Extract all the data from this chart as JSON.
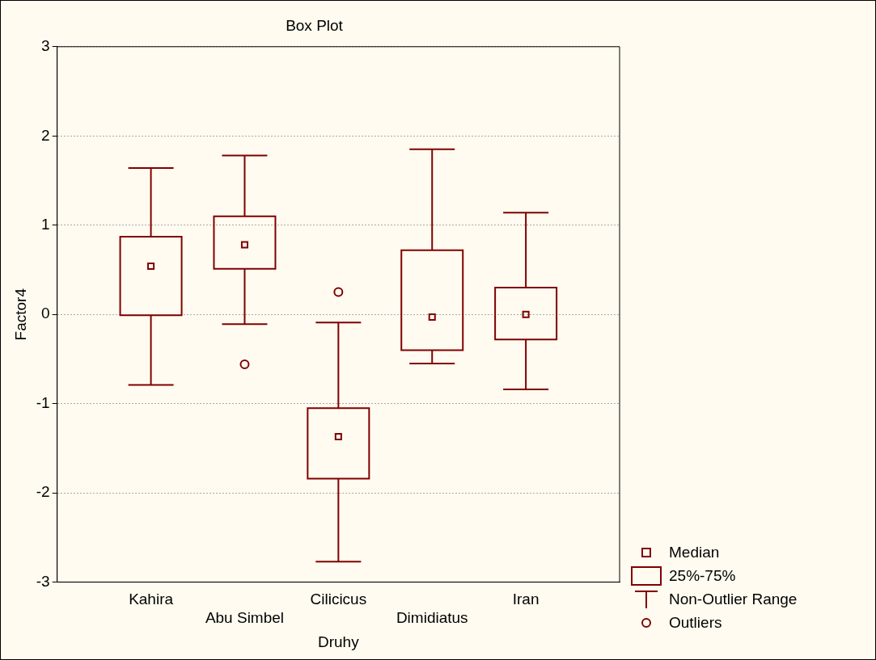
{
  "chart_data": {
    "type": "box",
    "title": "Box Plot",
    "xlabel": "Druhy",
    "ylabel": "Factor4",
    "categories": [
      "Kahira",
      "Abu Simbel",
      "Cilicicus",
      "Dimidiatus",
      "Iran"
    ],
    "color": "#800000",
    "boxes": [
      {
        "low": -0.79,
        "q1": -0.01,
        "median": 0.54,
        "q3": 0.87,
        "high": 1.64
      },
      {
        "low": -0.11,
        "q1": 0.51,
        "median": 0.78,
        "q3": 1.1,
        "high": 1.78,
        "outliers": [
          -0.56
        ]
      },
      {
        "low": -2.77,
        "q1": -1.84,
        "median": -1.37,
        "q3": -1.05,
        "high": -0.09,
        "outliers": [
          0.25
        ]
      },
      {
        "low": -0.55,
        "q1": -0.4,
        "median": -0.03,
        "q3": 0.72,
        "high": 1.85
      },
      {
        "low": -0.84,
        "q1": -0.28,
        "median": 0.0,
        "q3": 0.3,
        "high": 1.14
      }
    ],
    "ylim": [
      -3,
      3
    ],
    "yticks": [
      -3,
      -2,
      -1,
      0,
      1,
      2,
      3
    ],
    "grid": "y",
    "marker": "square",
    "annotations": [
      "Median",
      "25%-75%",
      "Non-Outlier Range",
      "Outliers"
    ]
  }
}
